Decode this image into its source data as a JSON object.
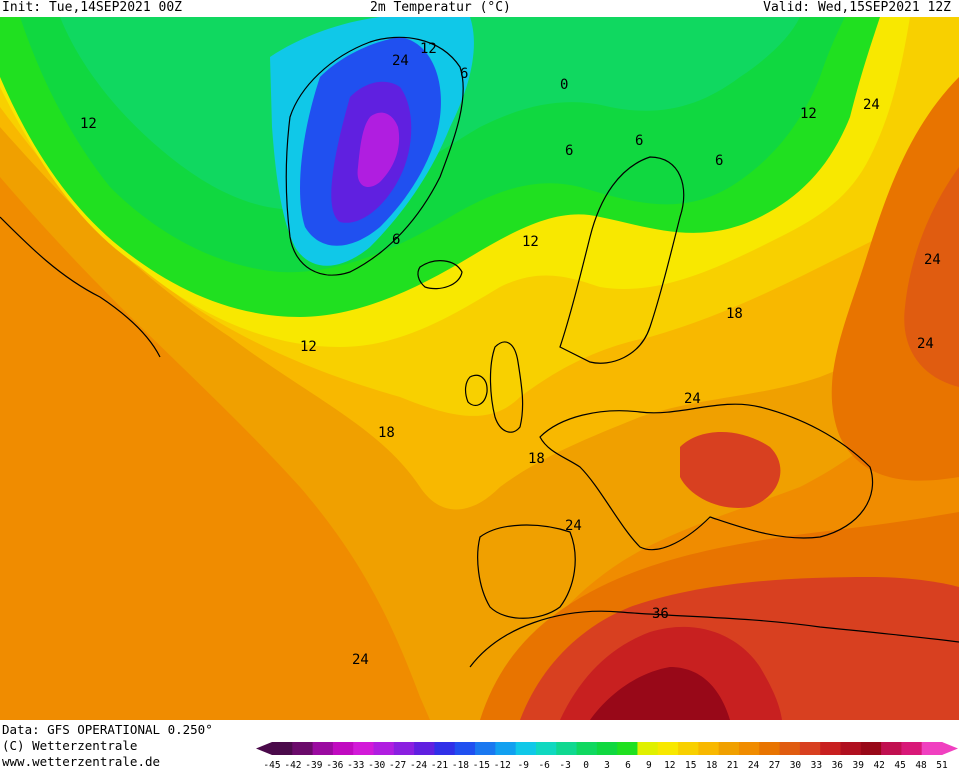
{
  "header": {
    "init": "Init: Tue,14SEP2021 00Z",
    "title": "2m Temperatur (°C)",
    "valid": "Valid: Wed,15SEP2021 12Z"
  },
  "footer": {
    "data_line": "Data: GFS OPERATIONAL 0.250°",
    "copyright": "(C) Wetterzentrale",
    "website": "www.wetterzentrale.de"
  },
  "contour_labels": [
    "12",
    "12",
    "6",
    "0",
    "6",
    "6",
    "6",
    "6",
    "12",
    "12",
    "12",
    "18",
    "18",
    "18",
    "24",
    "24",
    "24",
    "24",
    "24",
    "24",
    "36",
    "24"
  ],
  "colorbar": {
    "ticks": [
      "-45",
      "-42",
      "-39",
      "-36",
      "-33",
      "-30",
      "-27",
      "-24",
      "-21",
      "-18",
      "-15",
      "-12",
      "-9",
      "-6",
      "-3",
      "0",
      "3",
      "6",
      "9",
      "12",
      "15",
      "18",
      "21",
      "24",
      "27",
      "30",
      "33",
      "36",
      "39",
      "42",
      "45",
      "48",
      "51"
    ],
    "colors": [
      "#4a0a4a",
      "#6a0a6a",
      "#9a0aa0",
      "#c00ac0",
      "#d21ad8",
      "#b01ee0",
      "#8a20e0",
      "#6020e0",
      "#3030e8",
      "#2050f0",
      "#1a78f0",
      "#12a0f0",
      "#10c8e8",
      "#10d8c0",
      "#10d890",
      "#10d860",
      "#10d840",
      "#20e020",
      "#e0f000",
      "#f8e800",
      "#f8d000",
      "#f8b800",
      "#f0a000",
      "#f08c00",
      "#e87400",
      "#e05c10",
      "#d84020",
      "#c82020",
      "#b01020",
      "#980818",
      "#c01050",
      "#d81878",
      "#f040c0"
    ]
  },
  "colors": {
    "green": "#10d860",
    "deep_blue": "#3030e8",
    "yellow": "#f8e800",
    "orange": "#f08c00",
    "red": "#d84020",
    "dark_red": "#980818"
  }
}
